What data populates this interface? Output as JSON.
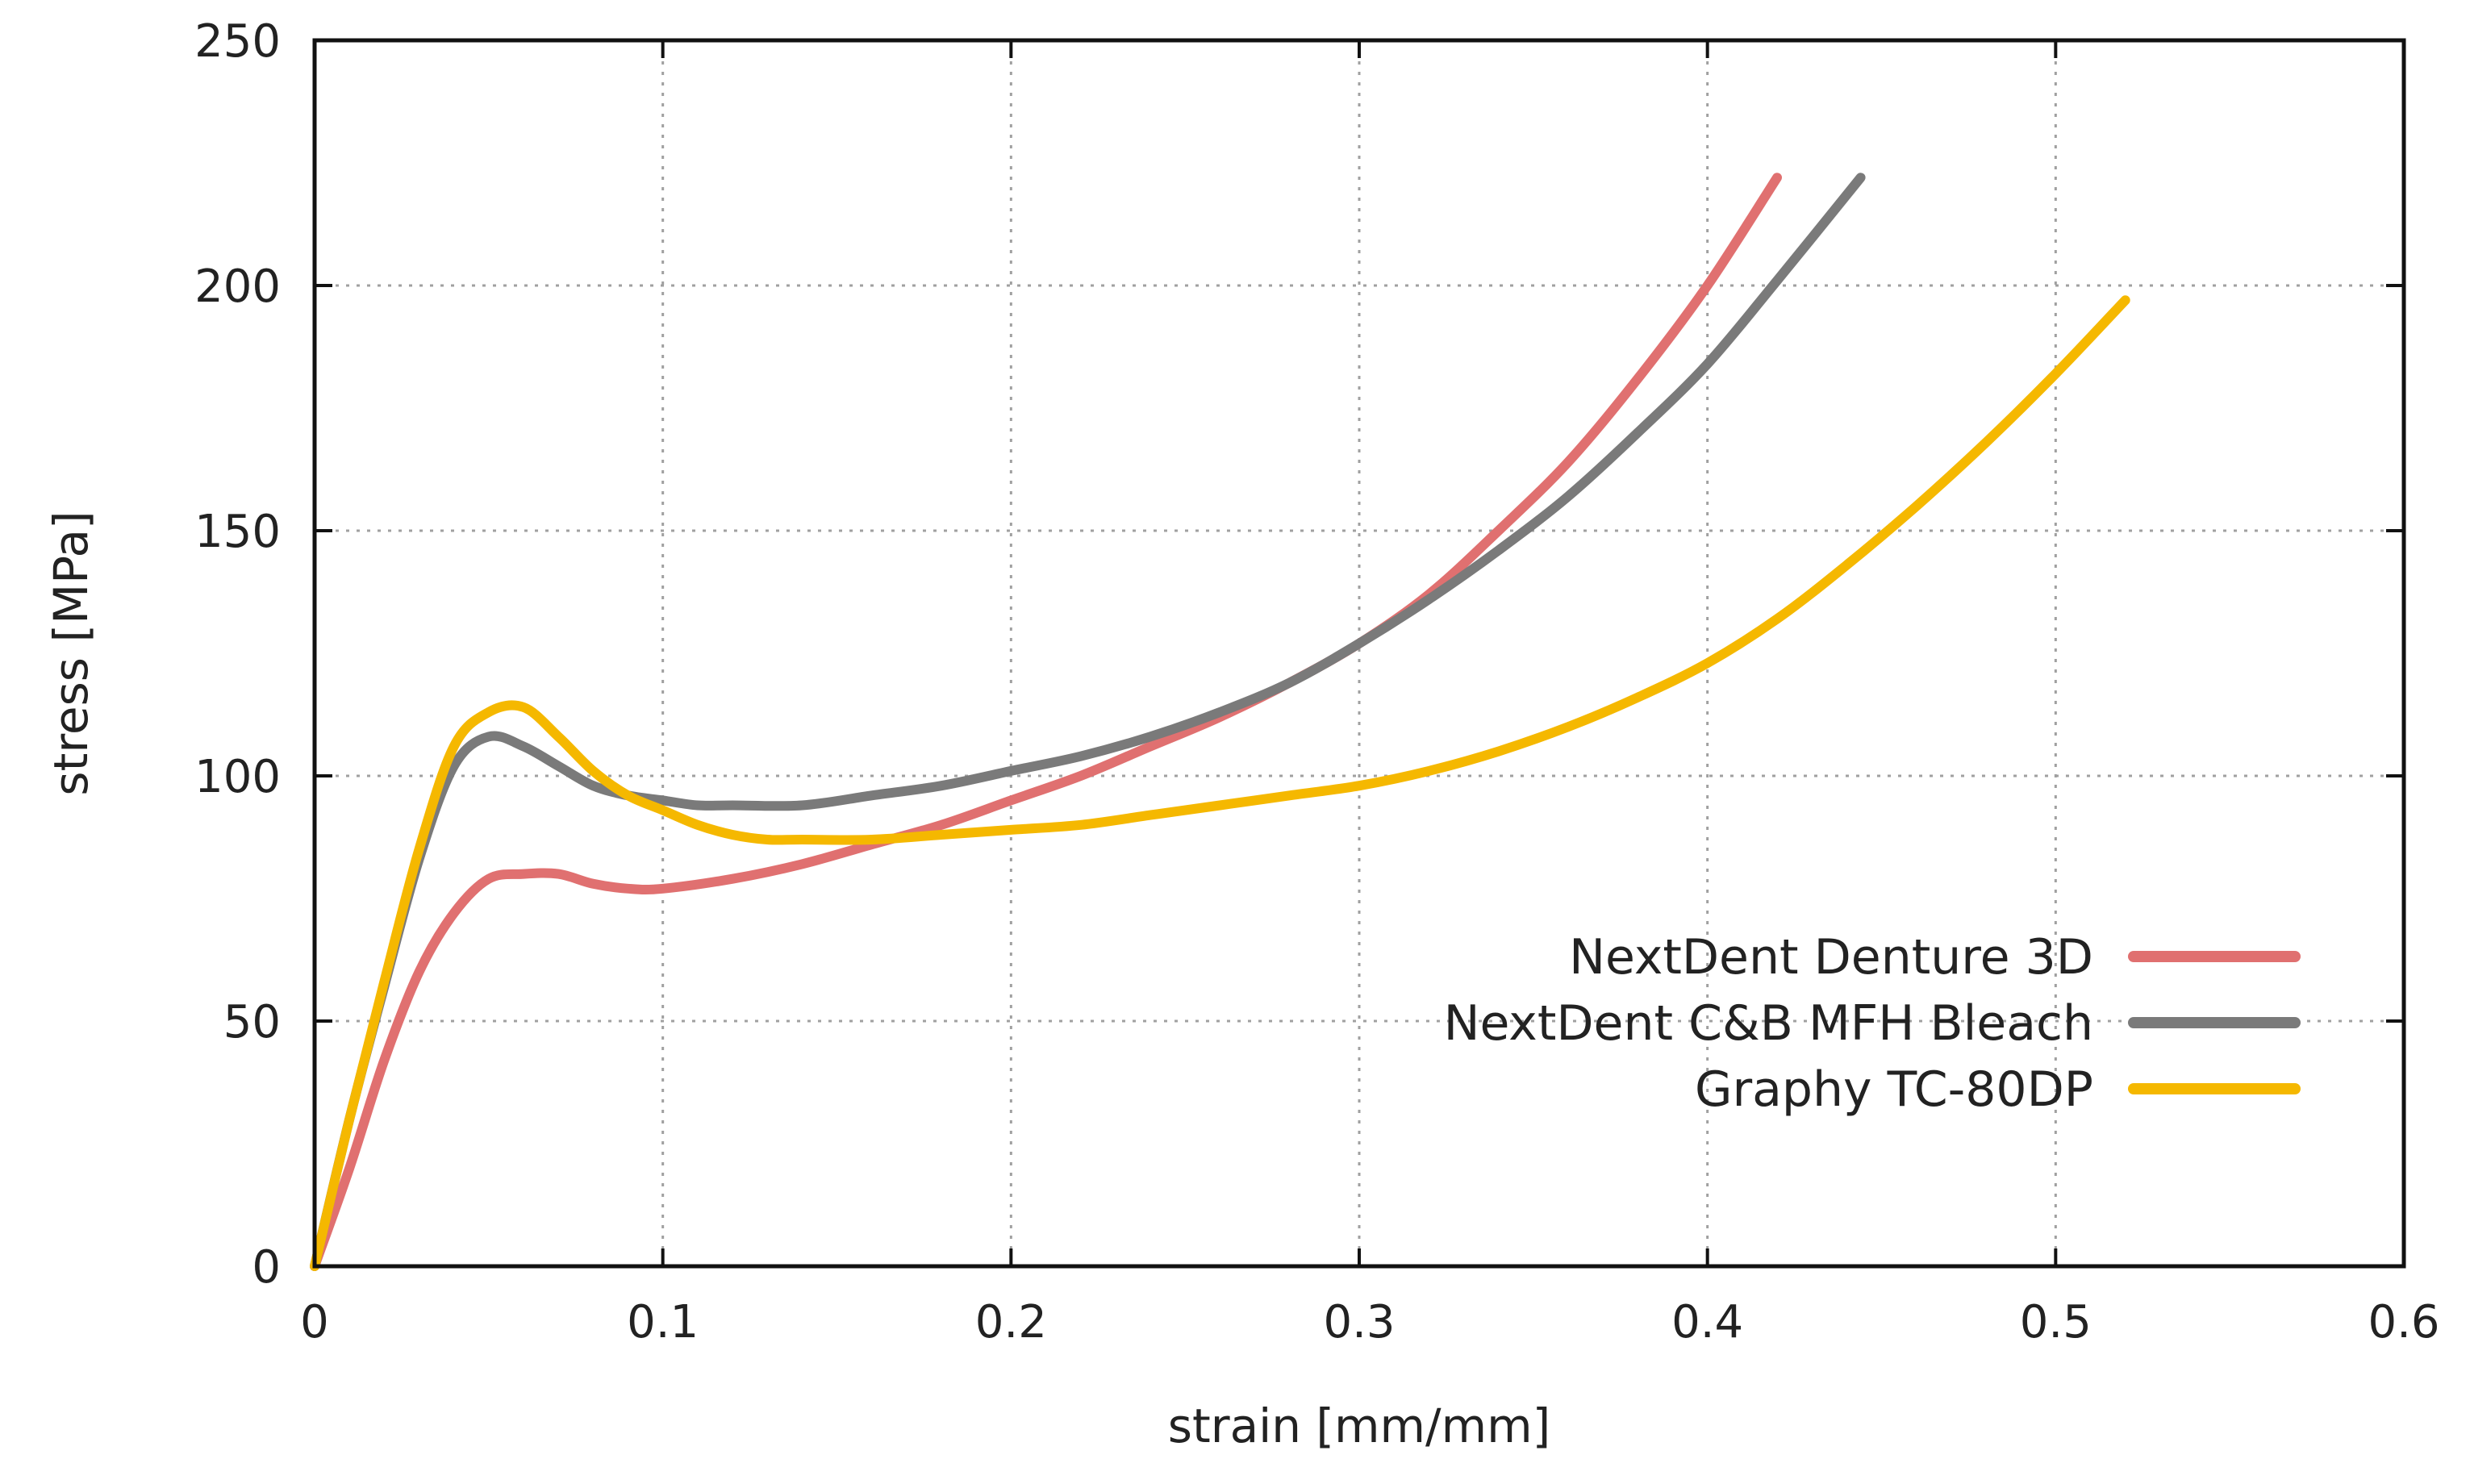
{
  "chart_data": {
    "type": "line",
    "title": "",
    "xlabel": "strain [mm/mm]",
    "ylabel": "stress [MPa]",
    "xlim": [
      0,
      0.6
    ],
    "ylim": [
      0,
      250
    ],
    "x_ticks": [
      0,
      0.1,
      0.2,
      0.3,
      0.4,
      0.5,
      0.6
    ],
    "x_tick_labels": [
      "0",
      "0.1",
      "0.2",
      "0.3",
      "0.4",
      "0.5",
      "0.6"
    ],
    "y_ticks": [
      0,
      50,
      100,
      150,
      200,
      250
    ],
    "y_tick_labels": [
      "0",
      "50",
      "100",
      "150",
      "200",
      "250"
    ],
    "grid": true,
    "legend_position": "bottom-right",
    "series": [
      {
        "name": "NextDent Denture 3D",
        "color": "#e07070",
        "x": [
          0,
          0.01,
          0.02,
          0.03,
          0.04,
          0.05,
          0.06,
          0.07,
          0.08,
          0.09,
          0.1,
          0.12,
          0.14,
          0.16,
          0.18,
          0.2,
          0.22,
          0.24,
          0.26,
          0.28,
          0.3,
          0.32,
          0.34,
          0.36,
          0.38,
          0.4,
          0.42
        ],
        "y": [
          0,
          20,
          42,
          60,
          72,
          79,
          80,
          80,
          78,
          77,
          77,
          79,
          82,
          86,
          90,
          95,
          100,
          106,
          112,
          119,
          127,
          137,
          150,
          164,
          181,
          200,
          222
        ]
      },
      {
        "name": "NextDent C&B MFH Bleach",
        "color": "#7a7a7a",
        "x": [
          0,
          0.01,
          0.02,
          0.03,
          0.04,
          0.05,
          0.06,
          0.07,
          0.08,
          0.09,
          0.1,
          0.11,
          0.12,
          0.14,
          0.16,
          0.18,
          0.2,
          0.22,
          0.24,
          0.26,
          0.28,
          0.3,
          0.32,
          0.34,
          0.36,
          0.38,
          0.4,
          0.42,
          0.444
        ],
        "y": [
          0,
          30,
          57,
          83,
          102,
          108,
          106,
          102,
          98,
          96,
          95,
          94,
          94,
          94,
          96,
          98,
          101,
          104,
          108,
          113,
          119,
          127,
          136,
          146,
          157,
          170,
          184,
          201,
          222
        ]
      },
      {
        "name": "Graphy TC-80DP",
        "color": "#f5b800",
        "x": [
          0,
          0.01,
          0.02,
          0.03,
          0.04,
          0.05,
          0.06,
          0.07,
          0.08,
          0.09,
          0.1,
          0.11,
          0.12,
          0.13,
          0.14,
          0.16,
          0.18,
          0.2,
          0.22,
          0.24,
          0.26,
          0.28,
          0.3,
          0.32,
          0.34,
          0.36,
          0.38,
          0.4,
          0.42,
          0.44,
          0.46,
          0.48,
          0.5,
          0.52
        ],
        "y": [
          0,
          30,
          58,
          85,
          106,
          113,
          114,
          108,
          101,
          96,
          93,
          90,
          88,
          87,
          87,
          87,
          88,
          89,
          90,
          92,
          94,
          96,
          98,
          101,
          105,
          110,
          116,
          123,
          132,
          143,
          155,
          168,
          182,
          197
        ]
      }
    ]
  }
}
